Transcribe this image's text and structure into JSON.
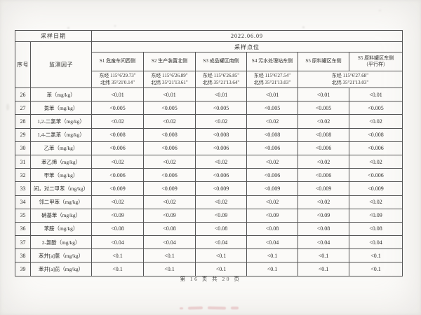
{
  "table": {
    "sampling_date_label": "采样日期",
    "sampling_date_value": "2022.06.09",
    "serial_header": "序号",
    "factor_header": "监测因子",
    "site_section_header": "采样点位",
    "site_names": [
      {
        "text": "S1 危废车间西侧"
      },
      {
        "text": "S2 生产装置北侧"
      },
      {
        "text": "S3 成品罐区南侧"
      },
      {
        "text": "S4 污水处理站东侧"
      },
      {
        "text": "S5 原料罐区东侧"
      },
      {
        "text": "S5 原料罐区东侧",
        "sub": "（平行样）"
      }
    ],
    "site_coords": [
      {
        "east": "东经 115°6'29.73\"",
        "north": "北纬 35°21'0.14\"",
        "span": 1
      },
      {
        "east": "东经 115°6'26.89\"",
        "north": "北纬 35°21'13.61\"",
        "span": 1
      },
      {
        "east": "东经 115°6'26.85\"",
        "north": "北纬 35°21'13.64\"",
        "span": 1
      },
      {
        "east": "东经 115°6'27.54\"",
        "north": "北纬 35°21'13.03\"",
        "span": 1
      },
      {
        "east": "东经 115°6'27.68\"",
        "north": "北纬 35°21'13.03\"",
        "span": 2
      }
    ],
    "rows": [
      {
        "no": "26",
        "factor": "苯（mg/kg）",
        "values": [
          "<0.01",
          "<0.01",
          "<0.01",
          "<0.01",
          "<0.01",
          "<0.01"
        ]
      },
      {
        "no": "27",
        "factor": "氯苯（mg/kg）",
        "values": [
          "<0.005",
          "<0.005",
          "<0.005",
          "<0.005",
          "<0.005",
          "<0.005"
        ]
      },
      {
        "no": "28",
        "factor": "1,2-二氯苯（mg/kg）",
        "values": [
          "<0.02",
          "<0.02",
          "<0.02",
          "<0.02",
          "<0.02",
          "<0.02"
        ]
      },
      {
        "no": "29",
        "factor": "1,4-二氯苯（mg/kg）",
        "values": [
          "<0.008",
          "<0.008",
          "<0.008",
          "<0.008",
          "<0.008",
          "<0.008"
        ]
      },
      {
        "no": "30",
        "factor": "乙苯（mg/kg）",
        "values": [
          "<0.006",
          "<0.006",
          "<0.006",
          "<0.006",
          "<0.006",
          "<0.006"
        ]
      },
      {
        "no": "31",
        "factor": "苯乙烯（mg/kg）",
        "values": [
          "<0.02",
          "<0.02",
          "<0.02",
          "<0.02",
          "<0.02",
          "<0.02"
        ]
      },
      {
        "no": "32",
        "factor": "甲苯（mg/kg）",
        "values": [
          "<0.006",
          "<0.006",
          "<0.006",
          "<0.006",
          "<0.006",
          "<0.006"
        ]
      },
      {
        "no": "33",
        "factor": "间，对二甲苯（mg/kg）",
        "values": [
          "<0.009",
          "<0.009",
          "<0.009",
          "<0.009",
          "<0.009",
          "<0.009"
        ]
      },
      {
        "no": "34",
        "factor": "邻二甲苯（mg/kg）",
        "values": [
          "<0.02",
          "<0.02",
          "<0.02",
          "<0.02",
          "<0.02",
          "<0.02"
        ]
      },
      {
        "no": "35",
        "factor": "硝基苯（mg/kg）",
        "values": [
          "<0.09",
          "<0.09",
          "<0.09",
          "<0.09",
          "<0.09",
          "<0.09"
        ]
      },
      {
        "no": "36",
        "factor": "苯胺（mg/kg）",
        "values": [
          "<0.08",
          "<0.08",
          "<0.08",
          "<0.08",
          "<0.08",
          "<0.08"
        ]
      },
      {
        "no": "37",
        "factor": "2-氯酚（mg/kg）",
        "values": [
          "<0.04",
          "<0.04",
          "<0.04",
          "<0.04",
          "<0.04",
          "<0.04"
        ]
      },
      {
        "no": "38",
        "factor": "苯并[a]蒽（mg/kg）",
        "values": [
          "<0.1",
          "<0.1",
          "<0.1",
          "<0.1",
          "<0.1",
          "<0.1"
        ]
      },
      {
        "no": "39",
        "factor": "苯并[a]芘（mg/kg）",
        "values": [
          "<0.1",
          "<0.1",
          "<0.1",
          "<0.1",
          "<0.1",
          "<0.1"
        ]
      }
    ]
  },
  "footer": {
    "page_text": "第 16 页 共 20 页"
  }
}
